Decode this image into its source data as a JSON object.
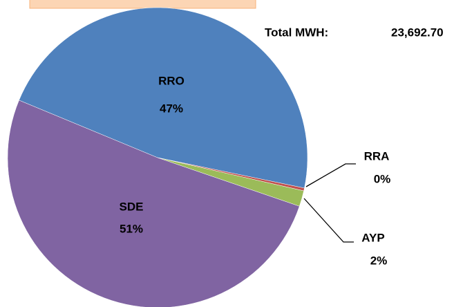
{
  "chart_data": {
    "type": "pie",
    "categories": [
      "RRO",
      "RRA",
      "AYP",
      "SDE"
    ],
    "values": [
      47,
      0.3,
      1.7,
      51
    ],
    "value_labels": [
      "47%",
      "0%",
      "2%",
      "51%"
    ],
    "colors": [
      "#4f81bd",
      "#c0504d",
      "#9bbb59",
      "#8064a2"
    ],
    "annotations": [
      {
        "label": "Total MWH:",
        "value": "23,692.70"
      }
    ]
  }
}
